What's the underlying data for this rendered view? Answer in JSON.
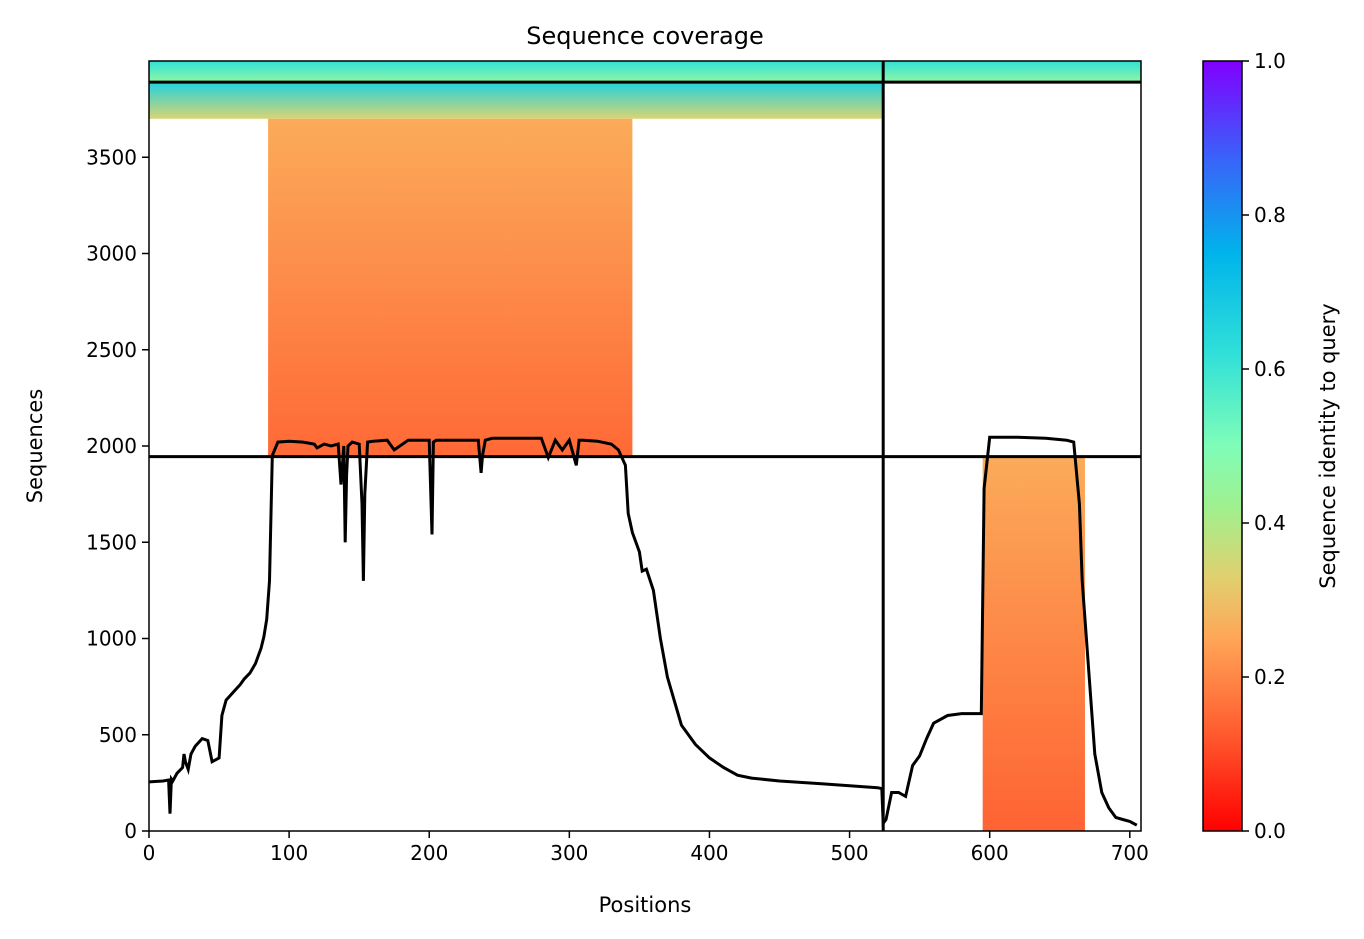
{
  "chart_data": {
    "type": "heatmap",
    "title": "Sequence coverage",
    "xlabel": "Positions",
    "ylabel": "Sequences",
    "xlim": [
      0,
      708
    ],
    "ylim": [
      0,
      4000
    ],
    "x_ticks": [
      0,
      100,
      200,
      300,
      400,
      500,
      600,
      700
    ],
    "y_ticks": [
      0,
      500,
      1000,
      1500,
      2000,
      2500,
      3000,
      3500
    ],
    "colorbar": {
      "label": "Sequence identity to query",
      "range": [
        0,
        1
      ],
      "ticks": [
        "0.0",
        "0.2",
        "0.4",
        "0.6",
        "0.8",
        "1.0"
      ],
      "colormap": "rainbow_r"
    },
    "dividers": {
      "x": [
        524
      ],
      "y": [
        1945,
        3890
      ]
    },
    "blocks": [
      {
        "x": [
          0,
          524
        ],
        "y": [
          3890,
          4000
        ],
        "identity_top": 0.62,
        "identity_bottom": 0.46
      },
      {
        "x": [
          524,
          708
        ],
        "y": [
          3890,
          4000
        ],
        "identity_top": 0.62,
        "identity_bottom": 0.46
      },
      {
        "x": [
          0,
          524
        ],
        "y": [
          3700,
          3890
        ],
        "identity_top": 0.66,
        "identity_bottom": 0.34
      },
      {
        "x": [
          85,
          345
        ],
        "y": [
          1945,
          3700
        ],
        "identity_top": 0.26,
        "identity_bottom": 0.15
      },
      {
        "x": [
          595,
          668
        ],
        "y": [
          0,
          1945
        ],
        "identity_top": 0.26,
        "identity_bottom": 0.14
      }
    ],
    "coverage": {
      "x": [
        0,
        10,
        14,
        15,
        16,
        17,
        20,
        24,
        25,
        26,
        28,
        30,
        33,
        38,
        42,
        45,
        50,
        52,
        55,
        60,
        65,
        68,
        72,
        76,
        80,
        82,
        84,
        86,
        88,
        92,
        100,
        110,
        118,
        120,
        125,
        130,
        135,
        137,
        139,
        140,
        141,
        142,
        145,
        150,
        152,
        153,
        154,
        156,
        160,
        170,
        175,
        185,
        195,
        200,
        202,
        203,
        205,
        210,
        220,
        235,
        237,
        238,
        240,
        245,
        260,
        280,
        285,
        290,
        295,
        300,
        305,
        307,
        310,
        320,
        330,
        335,
        340,
        342,
        345,
        350,
        352,
        355,
        360,
        365,
        370,
        380,
        390,
        400,
        410,
        420,
        430,
        450,
        480,
        500,
        520,
        523,
        524,
        526,
        530,
        535,
        540,
        545,
        550,
        555,
        560,
        570,
        580,
        590,
        594,
        596,
        600,
        620,
        640,
        655,
        660,
        664,
        666,
        668,
        670,
        672,
        675,
        680,
        685,
        690,
        695,
        700,
        705,
        708
      ],
      "y": [
        255,
        260,
        265,
        90,
        270,
        260,
        300,
        330,
        400,
        360,
        320,
        400,
        440,
        480,
        470,
        360,
        380,
        600,
        680,
        720,
        760,
        790,
        820,
        870,
        950,
        1010,
        1100,
        1300,
        1950,
        2020,
        2025,
        2020,
        2010,
        1990,
        2010,
        2000,
        2010,
        1800,
        2000,
        1500,
        1850,
        2000,
        2020,
        2010,
        1700,
        1300,
        1750,
        2020,
        2025,
        2030,
        1980,
        2030,
        2030,
        2030,
        1540,
        2020,
        2030,
        2030,
        2030,
        2030,
        1860,
        1950,
        2030,
        2040,
        2040,
        2040,
        1940,
        2030,
        1980,
        2030,
        1900,
        2030,
        2030,
        2025,
        2010,
        1980,
        1900,
        1650,
        1550,
        1450,
        1350,
        1360,
        1250,
        1000,
        800,
        550,
        450,
        380,
        330,
        290,
        275,
        260,
        245,
        235,
        225,
        220,
        40,
        60,
        200,
        200,
        180,
        340,
        390,
        480,
        560,
        600,
        610,
        610,
        610,
        1780,
        2045,
        2045,
        2040,
        2030,
        2020,
        1700,
        1300,
        1100,
        900,
        700,
        400,
        200,
        120,
        70,
        60,
        50,
        30
      ]
    }
  }
}
